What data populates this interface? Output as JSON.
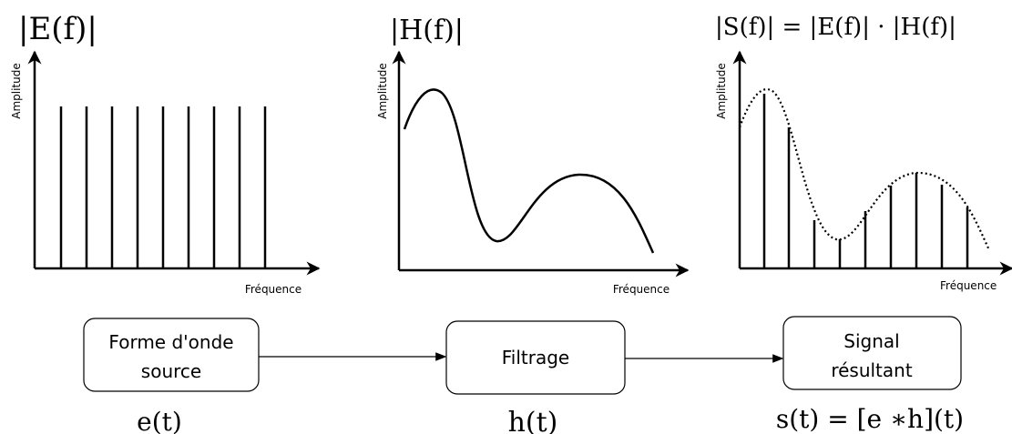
{
  "panels": [
    {
      "title": "|E(f)|",
      "y_label": "Amplitude",
      "x_label": "Fréquence"
    },
    {
      "title": "|H(f)|",
      "y_label": "Amplitude",
      "x_label": "Fréquence"
    },
    {
      "title": "|S(f)| = |E(f)| · |H(f)|",
      "y_label": "Amplitude",
      "x_label": "Fréquence"
    }
  ],
  "boxes": [
    {
      "lines": [
        "Forme d'onde",
        "source"
      ],
      "formula": "e(t)"
    },
    {
      "lines": [
        "Filtrage"
      ],
      "formula": "h(t)"
    },
    {
      "lines": [
        "Signal",
        "résultant"
      ],
      "formula": "s(t) = [e ∗h](t)"
    }
  ]
}
